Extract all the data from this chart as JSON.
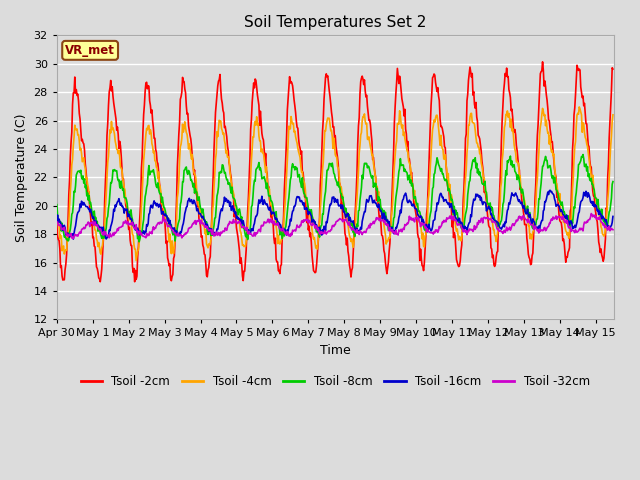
{
  "title": "Soil Temperatures Set 2",
  "xlabel": "Time",
  "ylabel": "Soil Temperature (C)",
  "ylim": [
    12,
    32
  ],
  "yticks": [
    12,
    14,
    16,
    18,
    20,
    22,
    24,
    26,
    28,
    30,
    32
  ],
  "background_color": "#dcdcdc",
  "plot_bg_color": "#dcdcdc",
  "grid_color": "#ffffff",
  "label_box_text": "VR_met",
  "label_box_facecolor": "#ffff99",
  "label_box_edgecolor": "#8b4513",
  "series_colors": [
    "#ff0000",
    "#ffa500",
    "#00cc00",
    "#0000cc",
    "#cc00cc"
  ],
  "series_labels": [
    "Tsoil -2cm",
    "Tsoil -4cm",
    "Tsoil -8cm",
    "Tsoil -16cm",
    "Tsoil -32cm"
  ],
  "n_days": 15.5,
  "dt_hours": 0.5,
  "tick_days": [
    0,
    1,
    2,
    3,
    4,
    5,
    6,
    7,
    8,
    9,
    10,
    11,
    12,
    13,
    14,
    15
  ],
  "tick_labels": [
    "Apr 30",
    "May 1",
    "May 2",
    "May 3",
    "May 4",
    "May 5",
    "May 6",
    "May 7",
    "May 8",
    "May 9",
    "May 10",
    "May 11",
    "May 12",
    "May 13",
    "May 14",
    "May 15"
  ],
  "figsize": [
    6.4,
    4.8
  ],
  "dpi": 100
}
